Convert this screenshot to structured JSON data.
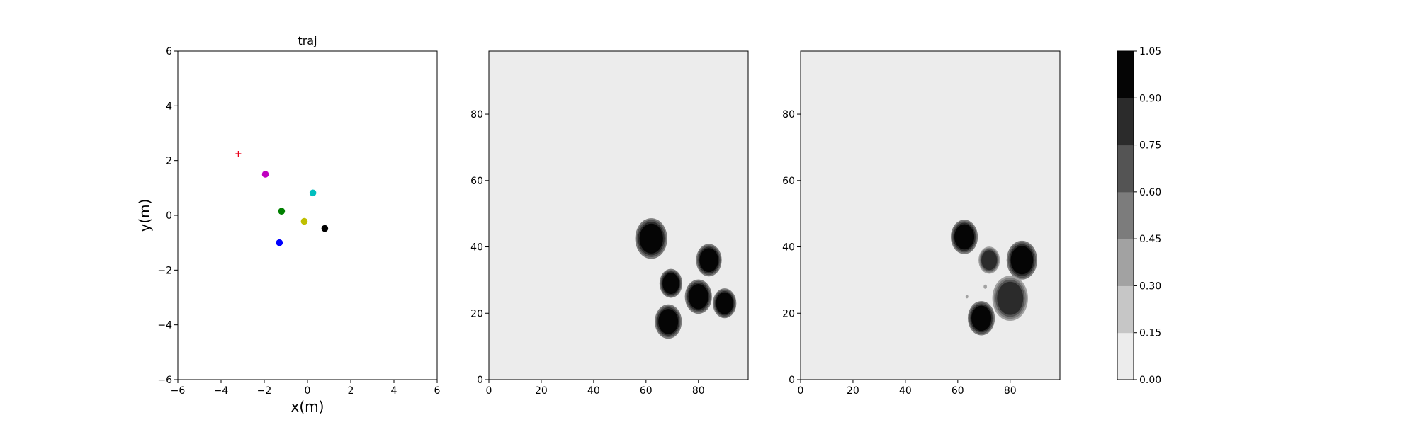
{
  "chart_data": [
    {
      "type": "scatter",
      "title": "traj",
      "xlabel": "x(m)",
      "ylabel": "y(m)",
      "xlim": [
        -6,
        6
      ],
      "ylim": [
        -6,
        6
      ],
      "xticks": [
        -6,
        -4,
        -2,
        0,
        2,
        4,
        6
      ],
      "yticks": [
        -6,
        -4,
        -2,
        0,
        2,
        4,
        6
      ],
      "grid": false,
      "points": [
        {
          "x": -3.2,
          "y": 2.25,
          "color": "#e8001a",
          "marker": "plus"
        },
        {
          "x": -1.95,
          "y": 1.5,
          "color": "#bf00bf",
          "marker": "circle"
        },
        {
          "x": 0.25,
          "y": 0.82,
          "color": "#00bfbf",
          "marker": "circle"
        },
        {
          "x": -1.2,
          "y": 0.15,
          "color": "#008000",
          "marker": "circle"
        },
        {
          "x": -0.15,
          "y": -0.22,
          "color": "#bfbf00",
          "marker": "circle"
        },
        {
          "x": 0.8,
          "y": -0.48,
          "color": "#000000",
          "marker": "circle"
        },
        {
          "x": -1.3,
          "y": -1.0,
          "color": "#0000ff",
          "marker": "circle"
        }
      ]
    },
    {
      "type": "heatmap",
      "xlim": [
        0,
        99
      ],
      "ylim": [
        0,
        99
      ],
      "xticks": [
        0,
        20,
        40,
        60,
        80
      ],
      "yticks": [
        0,
        20,
        40,
        60,
        80
      ],
      "background": "#ececec",
      "blobs": [
        {
          "x": 62,
          "y": 42.5,
          "r": 4.5,
          "level": 1.0
        },
        {
          "x": 84,
          "y": 36,
          "r": 3.6,
          "level": 1.0
        },
        {
          "x": 69.5,
          "y": 29,
          "r": 3.2,
          "level": 1.0
        },
        {
          "x": 80,
          "y": 25,
          "r": 3.8,
          "level": 1.0
        },
        {
          "x": 90,
          "y": 23,
          "r": 3.3,
          "level": 1.0
        },
        {
          "x": 68.5,
          "y": 17.5,
          "r": 3.8,
          "level": 1.0
        }
      ]
    },
    {
      "type": "heatmap",
      "xlim": [
        0,
        99
      ],
      "ylim": [
        0,
        99
      ],
      "xticks": [
        0,
        20,
        40,
        60,
        80
      ],
      "yticks": [
        0,
        20,
        40,
        60,
        80
      ],
      "background": "#ececec",
      "blobs": [
        {
          "x": 62.5,
          "y": 43,
          "r": 3.8,
          "level": 1.0
        },
        {
          "x": 72,
          "y": 36,
          "r": 3.0,
          "level": 0.7
        },
        {
          "x": 84.5,
          "y": 36,
          "r": 4.3,
          "level": 1.0
        },
        {
          "x": 80,
          "y": 24.5,
          "r": 5.0,
          "level": 0.8
        },
        {
          "x": 69,
          "y": 18.5,
          "r": 3.8,
          "level": 1.0
        },
        {
          "x": 70.5,
          "y": 28,
          "r": 0.6,
          "level": 0.3
        },
        {
          "x": 63.5,
          "y": 25,
          "r": 0.5,
          "level": 0.25
        }
      ]
    },
    {
      "type": "colorbar",
      "ticks": [
        "0.00",
        "0.15",
        "0.30",
        "0.45",
        "0.60",
        "0.75",
        "0.90",
        "1.05"
      ],
      "level_colors": [
        "#ececec",
        "#c6c6c6",
        "#a2a2a2",
        "#7c7c7c",
        "#545454",
        "#2b2b2b",
        "#050505"
      ]
    }
  ]
}
